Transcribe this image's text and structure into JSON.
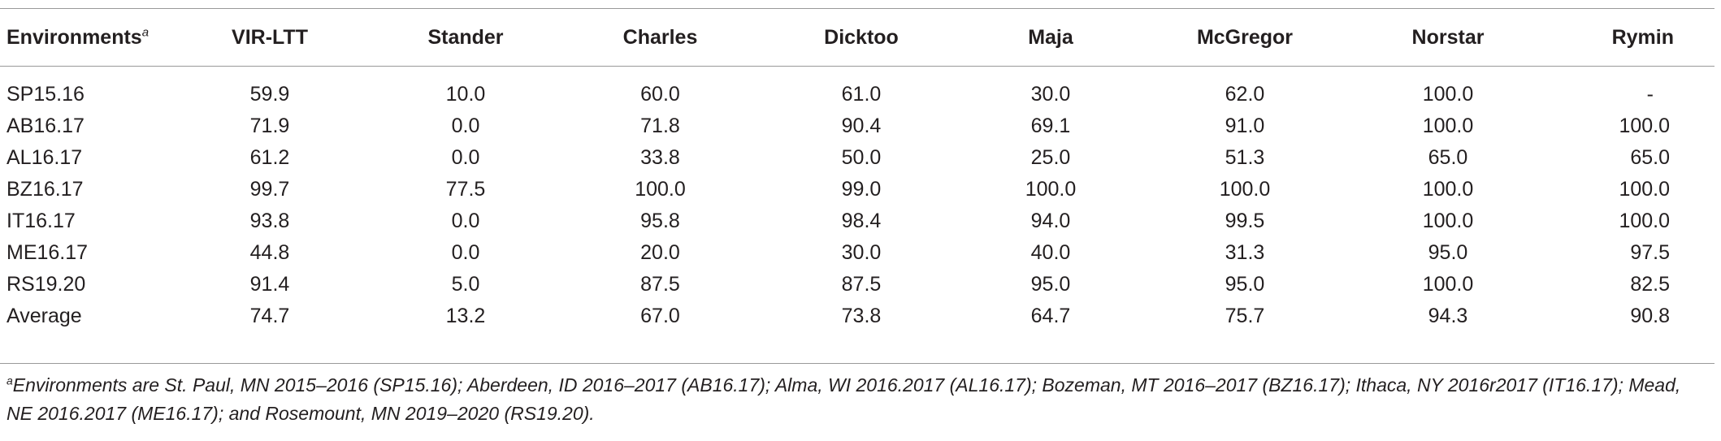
{
  "table": {
    "headers": [
      "Environments",
      "VIR-LTT",
      "Stander",
      "Charles",
      "Dicktoo",
      "Maja",
      "McGregor",
      "Norstar",
      "Rymin"
    ],
    "header_footnote_marker": "a",
    "rows": [
      [
        "SP15.16",
        "59.9",
        "10.0",
        "60.0",
        "61.0",
        "30.0",
        "62.0",
        "100.0",
        "-"
      ],
      [
        "AB16.17",
        "71.9",
        "0.0",
        "71.8",
        "90.4",
        "69.1",
        "91.0",
        "100.0",
        "100.0"
      ],
      [
        "AL16.17",
        "61.2",
        "0.0",
        "33.8",
        "50.0",
        "25.0",
        "51.3",
        "65.0",
        "65.0"
      ],
      [
        "BZ16.17",
        "99.7",
        "77.5",
        "100.0",
        "99.0",
        "100.0",
        "100.0",
        "100.0",
        "100.0"
      ],
      [
        "IT16.17",
        "93.8",
        "0.0",
        "95.8",
        "98.4",
        "94.0",
        "99.5",
        "100.0",
        "100.0"
      ],
      [
        "ME16.17",
        "44.8",
        "0.0",
        "20.0",
        "30.0",
        "40.0",
        "31.3",
        "95.0",
        "97.5"
      ],
      [
        "RS19.20",
        "91.4",
        "5.0",
        "87.5",
        "87.5",
        "95.0",
        "95.0",
        "100.0",
        "82.5"
      ],
      [
        "Average",
        "74.7",
        "13.2",
        "67.0",
        "73.8",
        "64.7",
        "75.7",
        "94.3",
        "90.8"
      ]
    ]
  },
  "footnote": {
    "marker": "a",
    "text": "Environments are St. Paul, MN 2015–2016 (SP15.16); Aberdeen, ID 2016–2017 (AB16.17); Alma, WI 2016.2017 (AL16.17); Bozeman, MT 2016–2017 (BZ16.17); Ithaca, NY 2016r2017 (IT16.17); Mead, NE 2016.2017 (ME16.17); and Rosemount, MN 2019–2020 (RS19.20)."
  }
}
